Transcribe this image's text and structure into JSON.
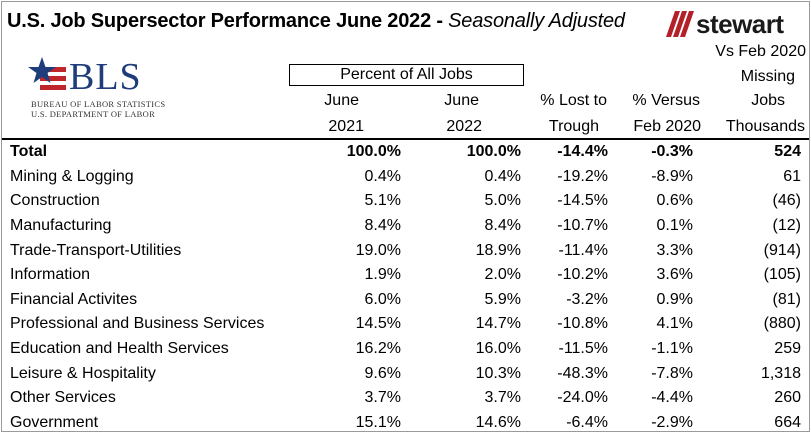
{
  "title": {
    "main": "U.S. Job Supersector Performance June 2022 - ",
    "sub": "Seasonally Adjusted"
  },
  "logos": {
    "stewart": "stewart",
    "bls": {
      "letters": "BLS",
      "line1": "BUREAU OF LABOR STATISTICS",
      "line2": "U.S. DEPARTMENT OF LABOR"
    }
  },
  "colors": {
    "stewart_red": "#b3202a",
    "bls_blue": "#1f3d7a",
    "bls_red": "#c0272d"
  },
  "header": {
    "percent_group": "Percent of All Jobs",
    "col1": [
      "June",
      "2021"
    ],
    "col2": [
      "June",
      "2022"
    ],
    "col3": [
      "% Lost to",
      "Trough"
    ],
    "col4": [
      "% Versus",
      "Feb 2020"
    ],
    "col5": [
      "Vs Feb 2020",
      "Missing",
      "Jobs",
      "Thousands"
    ]
  },
  "rows": [
    {
      "name": "Total",
      "jun2021": "100.0%",
      "jun2022": "100.0%",
      "lost": "-14.4%",
      "versus": "-0.3%",
      "missing": "524"
    },
    {
      "name": "Mining & Logging",
      "jun2021": "0.4%",
      "jun2022": "0.4%",
      "lost": "-19.2%",
      "versus": "-8.9%",
      "missing": "61"
    },
    {
      "name": "Construction",
      "jun2021": "5.1%",
      "jun2022": "5.0%",
      "lost": "-14.5%",
      "versus": "0.6%",
      "missing": "(46)"
    },
    {
      "name": "Manufacturing",
      "jun2021": "8.4%",
      "jun2022": "8.4%",
      "lost": "-10.7%",
      "versus": "0.1%",
      "missing": "(12)"
    },
    {
      "name": "Trade-Transport-Utilities",
      "jun2021": "19.0%",
      "jun2022": "18.9%",
      "lost": "-11.4%",
      "versus": "3.3%",
      "missing": "(914)"
    },
    {
      "name": "Information",
      "jun2021": "1.9%",
      "jun2022": "2.0%",
      "lost": "-10.2%",
      "versus": "3.6%",
      "missing": "(105)"
    },
    {
      "name": "Financial Activites",
      "jun2021": "6.0%",
      "jun2022": "5.9%",
      "lost": "-3.2%",
      "versus": "0.9%",
      "missing": "(81)"
    },
    {
      "name": "Professional and Business Services",
      "jun2021": "14.5%",
      "jun2022": "14.7%",
      "lost": "-10.8%",
      "versus": "4.1%",
      "missing": "(880)"
    },
    {
      "name": "Education and Health Services",
      "jun2021": "16.2%",
      "jun2022": "16.0%",
      "lost": "-11.5%",
      "versus": "-1.1%",
      "missing": "259"
    },
    {
      "name": "Leisure & Hospitality",
      "jun2021": "9.6%",
      "jun2022": "10.3%",
      "lost": "-48.3%",
      "versus": "-7.8%",
      "missing": "1,318"
    },
    {
      "name": "Other Services",
      "jun2021": "3.7%",
      "jun2022": "3.7%",
      "lost": "-24.0%",
      "versus": "-4.4%",
      "missing": "260"
    },
    {
      "name": "Government",
      "jun2021": "15.1%",
      "jun2022": "14.6%",
      "lost": "-6.4%",
      "versus": "-2.9%",
      "missing": "664"
    }
  ]
}
